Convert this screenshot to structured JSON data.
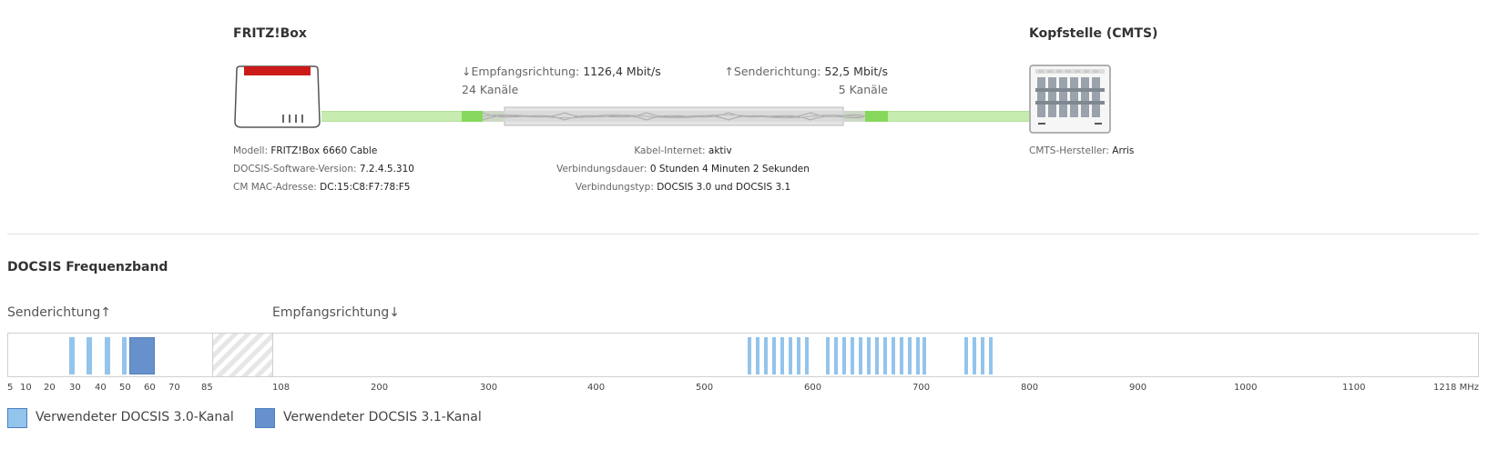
{
  "fritzbox": {
    "title": "FRITZ!Box",
    "model_label": "Modell:",
    "model_value": "FRITZ!Box 6660 Cable",
    "docsis_version_label": "DOCSIS-Software-Version:",
    "docsis_version_value": "7.2.4.5.310",
    "mac_label": "CM MAC-Adresse:",
    "mac_value": "DC:15:C8:F7:78:F5"
  },
  "cmts": {
    "title": "Kopfstelle (CMTS)",
    "vendor_label": "CMTS-Hersteller:",
    "vendor_value": "Arris"
  },
  "link": {
    "down_label": "↓Empfangsrichtung:",
    "down_rate": "1126,4 Mbit/s",
    "down_channels": "24 Kanäle",
    "up_label": "↑Senderichtung:",
    "up_rate": "52,5 Mbit/s",
    "up_channels": "5 Kanäle",
    "internet_label": "Kabel-Internet:",
    "internet_value": "aktiv",
    "duration_label": "Verbindungsdauer:",
    "duration_value": "0 Stunden 4 Minuten 2 Sekunden",
    "type_label": "Verbindungstyp:",
    "type_value": "DOCSIS 3.0 und DOCSIS 3.1"
  },
  "band": {
    "title": "DOCSIS Frequenzband",
    "up_title": "Senderichtung↑",
    "down_title": "Empfangsrichtung↓",
    "up_ticks": [
      "5",
      "10",
      "20",
      "30",
      "40",
      "50",
      "60",
      "70",
      "85"
    ],
    "down_ticks": [
      "108",
      "200",
      "300",
      "400",
      "500",
      "600",
      "700",
      "800",
      "900",
      "1000",
      "1100",
      "1218 MHz"
    ],
    "legend_30": "Verwendeter DOCSIS 3.0-Kanal",
    "legend_31": "Verwendeter DOCSIS 3.1-Kanal",
    "color_30": "#93c4ec",
    "color_31": "#6691cc",
    "color_fiber": "#b8e69a",
    "color_brand_red": "#cc1a1a"
  }
}
